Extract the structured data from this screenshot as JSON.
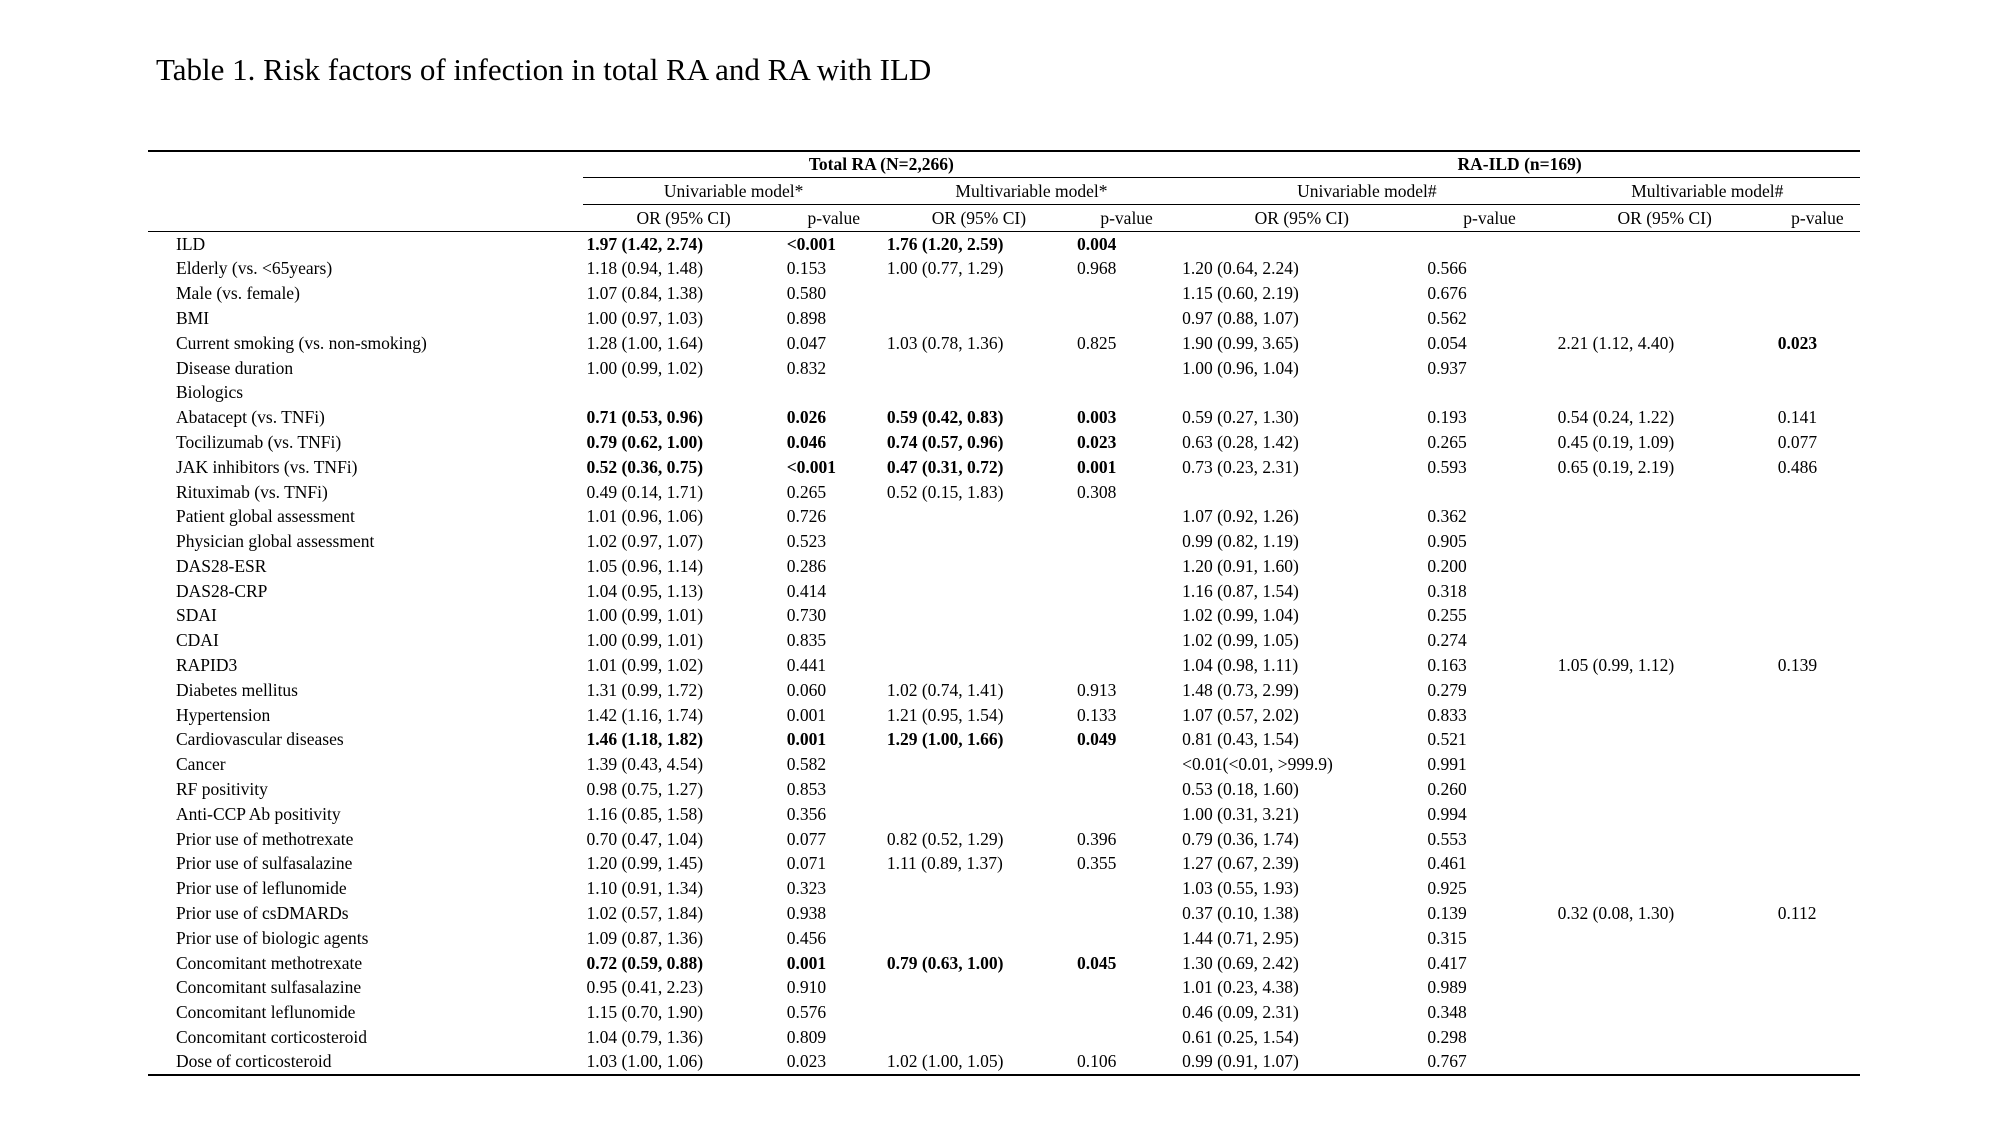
{
  "title": "Table 1. Risk factors of infection in total RA and RA with ILD",
  "table": {
    "group_headers": [
      {
        "label": "Total RA (N=2,266)",
        "span": 4
      },
      {
        "label": "RA-ILD (n=169)",
        "span": 4
      }
    ],
    "model_headers": [
      {
        "label": "Univariable model*",
        "span": 2
      },
      {
        "label": "Multivariable model*",
        "span": 2
      },
      {
        "label": "Univariable model#",
        "span": 2
      },
      {
        "label": "Multivariable model#",
        "span": 2
      }
    ],
    "column_headers": [
      "OR (95% CI)",
      "p-value",
      "OR (95% CI)",
      "p-value",
      "OR (95% CI)",
      "p-value",
      "OR (95% CI)",
      "p-value"
    ],
    "rows": [
      {
        "label": "ILD",
        "values": [
          "1.97 (1.42, 2.74)",
          "<0.001",
          "1.76 (1.20, 2.59)",
          "0.004",
          "",
          "",
          "",
          ""
        ],
        "bold": [
          0,
          1,
          2,
          3
        ]
      },
      {
        "label": "Elderly (vs. <65years)",
        "values": [
          "1.18 (0.94, 1.48)",
          "0.153",
          "1.00 (0.77, 1.29)",
          "0.968",
          "1.20 (0.64, 2.24)",
          "0.566",
          "",
          ""
        ]
      },
      {
        "label": "Male (vs. female)",
        "values": [
          "1.07 (0.84, 1.38)",
          "0.580",
          "",
          "",
          "1.15 (0.60, 2.19)",
          "0.676",
          "",
          ""
        ]
      },
      {
        "label": "BMI",
        "values": [
          "1.00 (0.97, 1.03)",
          "0.898",
          "",
          "",
          "0.97 (0.88, 1.07)",
          "0.562",
          "",
          ""
        ]
      },
      {
        "label": "Current smoking (vs. non-smoking)",
        "values": [
          "1.28 (1.00, 1.64)",
          "0.047",
          "1.03 (0.78, 1.36)",
          "0.825",
          "1.90 (0.99, 3.65)",
          "0.054",
          "2.21 (1.12, 4.40)",
          "0.023"
        ],
        "bold": [
          7
        ]
      },
      {
        "label": "Disease duration",
        "values": [
          "1.00 (0.99, 1.02)",
          "0.832",
          "",
          "",
          "1.00 (0.96, 1.04)",
          "0.937",
          "",
          ""
        ]
      },
      {
        "label": "Biologics",
        "section": true,
        "values": [
          "",
          "",
          "",
          "",
          "",
          "",
          "",
          ""
        ]
      },
      {
        "label": "Abatacept (vs. TNFi)",
        "values": [
          "0.71 (0.53, 0.96)",
          "0.026",
          "0.59 (0.42, 0.83)",
          "0.003",
          "0.59 (0.27, 1.30)",
          "0.193",
          "0.54 (0.24, 1.22)",
          "0.141"
        ],
        "bold": [
          0,
          1,
          2,
          3
        ]
      },
      {
        "label": "Tocilizumab (vs. TNFi)",
        "values": [
          "0.79 (0.62, 1.00)",
          "0.046",
          "0.74 (0.57, 0.96)",
          "0.023",
          "0.63 (0.28, 1.42)",
          "0.265",
          "0.45 (0.19, 1.09)",
          "0.077"
        ],
        "bold": [
          0,
          1,
          2,
          3
        ]
      },
      {
        "label": "JAK inhibitors (vs. TNFi)",
        "values": [
          "0.52 (0.36, 0.75)",
          "<0.001",
          "0.47 (0.31, 0.72)",
          "0.001",
          "0.73 (0.23, 2.31)",
          "0.593",
          "0.65 (0.19, 2.19)",
          "0.486"
        ],
        "bold": [
          0,
          1,
          2,
          3
        ]
      },
      {
        "label": "Rituximab (vs. TNFi)",
        "values": [
          "0.49 (0.14, 1.71)",
          "0.265",
          "0.52 (0.15, 1.83)",
          "0.308",
          "",
          "",
          "",
          ""
        ]
      },
      {
        "label": "Patient global assessment",
        "values": [
          "1.01 (0.96, 1.06)",
          "0.726",
          "",
          "",
          "1.07 (0.92, 1.26)",
          "0.362",
          "",
          ""
        ]
      },
      {
        "label": "Physician global assessment",
        "values": [
          "1.02 (0.97, 1.07)",
          "0.523",
          "",
          "",
          "0.99 (0.82, 1.19)",
          "0.905",
          "",
          ""
        ]
      },
      {
        "label": "DAS28-ESR",
        "values": [
          "1.05 (0.96, 1.14)",
          "0.286",
          "",
          "",
          "1.20 (0.91, 1.60)",
          "0.200",
          "",
          ""
        ]
      },
      {
        "label": "DAS28-CRP",
        "values": [
          "1.04 (0.95, 1.13)",
          "0.414",
          "",
          "",
          "1.16 (0.87, 1.54)",
          "0.318",
          "",
          ""
        ]
      },
      {
        "label": "SDAI",
        "values": [
          "1.00 (0.99, 1.01)",
          "0.730",
          "",
          "",
          "1.02 (0.99, 1.04)",
          "0.255",
          "",
          ""
        ]
      },
      {
        "label": "CDAI",
        "values": [
          "1.00 (0.99, 1.01)",
          "0.835",
          "",
          "",
          "1.02 (0.99, 1.05)",
          "0.274",
          "",
          ""
        ]
      },
      {
        "label": "RAPID3",
        "values": [
          "1.01 (0.99, 1.02)",
          "0.441",
          "",
          "",
          "1.04 (0.98, 1.11)",
          "0.163",
          "1.05 (0.99, 1.12)",
          "0.139"
        ]
      },
      {
        "label": "Diabetes mellitus",
        "values": [
          "1.31 (0.99, 1.72)",
          "0.060",
          "1.02 (0.74, 1.41)",
          "0.913",
          "1.48 (0.73, 2.99)",
          "0.279",
          "",
          ""
        ]
      },
      {
        "label": "Hypertension",
        "values": [
          "1.42 (1.16, 1.74)",
          "0.001",
          "1.21 (0.95, 1.54)",
          "0.133",
          "1.07 (0.57, 2.02)",
          "0.833",
          "",
          ""
        ]
      },
      {
        "label": "Cardiovascular diseases",
        "values": [
          "1.46 (1.18, 1.82)",
          "0.001",
          "1.29 (1.00, 1.66)",
          "0.049",
          "0.81 (0.43, 1.54)",
          "0.521",
          "",
          ""
        ],
        "bold": [
          0,
          1,
          2,
          3
        ]
      },
      {
        "label": "Cancer",
        "values": [
          "1.39 (0.43, 4.54)",
          "0.582",
          "",
          "",
          "<0.01(<0.01, >999.9)",
          "0.991",
          "",
          ""
        ]
      },
      {
        "label": "RF positivity",
        "values": [
          "0.98 (0.75, 1.27)",
          "0.853",
          "",
          "",
          "0.53 (0.18, 1.60)",
          "0.260",
          "",
          ""
        ]
      },
      {
        "label": "Anti-CCP Ab positivity",
        "values": [
          "1.16 (0.85, 1.58)",
          "0.356",
          "",
          "",
          "1.00 (0.31, 3.21)",
          "0.994",
          "",
          ""
        ]
      },
      {
        "label": "Prior use of methotrexate",
        "values": [
          "0.70 (0.47, 1.04)",
          "0.077",
          "0.82 (0.52, 1.29)",
          "0.396",
          "0.79 (0.36, 1.74)",
          "0.553",
          "",
          ""
        ]
      },
      {
        "label": "Prior use of sulfasalazine",
        "values": [
          "1.20 (0.99, 1.45)",
          "0.071",
          "1.11 (0.89, 1.37)",
          "0.355",
          "1.27 (0.67, 2.39)",
          "0.461",
          "",
          ""
        ]
      },
      {
        "label": "Prior use of leflunomide",
        "values": [
          "1.10 (0.91, 1.34)",
          "0.323",
          "",
          "",
          "1.03 (0.55, 1.93)",
          "0.925",
          "",
          ""
        ]
      },
      {
        "label": "Prior use of csDMARDs",
        "values": [
          "1.02 (0.57, 1.84)",
          "0.938",
          "",
          "",
          "0.37 (0.10, 1.38)",
          "0.139",
          "0.32 (0.08, 1.30)",
          "0.112"
        ]
      },
      {
        "label": "Prior use of biologic agents",
        "values": [
          "1.09 (0.87, 1.36)",
          "0.456",
          "",
          "",
          "1.44 (0.71, 2.95)",
          "0.315",
          "",
          ""
        ]
      },
      {
        "label": "Concomitant methotrexate",
        "values": [
          "0.72 (0.59, 0.88)",
          "0.001",
          "0.79 (0.63, 1.00)",
          "0.045",
          "1.30 (0.69, 2.42)",
          "0.417",
          "",
          ""
        ],
        "bold": [
          0,
          1,
          2,
          3
        ]
      },
      {
        "label": "Concomitant sulfasalazine",
        "values": [
          "0.95 (0.41, 2.23)",
          "0.910",
          "",
          "",
          "1.01 (0.23, 4.38)",
          "0.989",
          "",
          ""
        ]
      },
      {
        "label": "Concomitant leflunomide",
        "values": [
          "1.15 (0.70, 1.90)",
          "0.576",
          "",
          "",
          "0.46 (0.09, 2.31)",
          "0.348",
          "",
          ""
        ]
      },
      {
        "label": "Concomitant corticosteroid",
        "values": [
          "1.04 (0.79, 1.36)",
          "0.809",
          "",
          "",
          "0.61 (0.25, 1.54)",
          "0.298",
          "",
          ""
        ]
      },
      {
        "label": "Dose of corticosteroid",
        "values": [
          "1.03 (1.00, 1.06)",
          "0.023",
          "1.02 (1.00, 1.05)",
          "0.106",
          "0.99 (0.91, 1.07)",
          "0.767",
          "",
          ""
        ]
      }
    ]
  }
}
